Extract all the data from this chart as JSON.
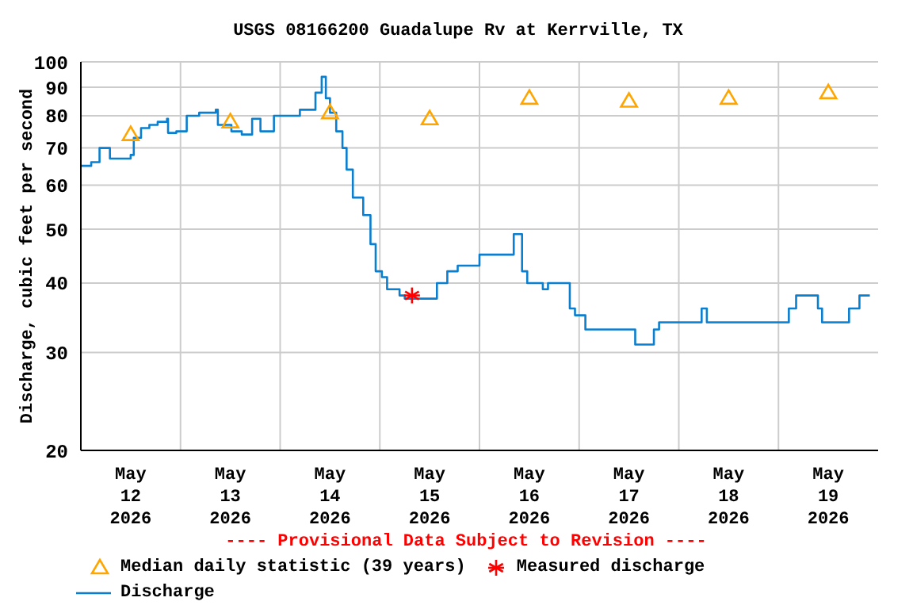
{
  "chart_data": {
    "type": "step",
    "title": "USGS 08166200 Guadalupe Rv at Kerrville, TX",
    "ylabel": "Discharge, cubic feet per second",
    "annotations": [
      "---- Provisional Data Subject to Revision ----"
    ],
    "xlim": [
      "2026-05-12T00:00",
      "2026-05-20T00:00"
    ],
    "xticks": [
      {
        "value": "2026-05-12T12:00",
        "label": "May\n12\n2026"
      },
      {
        "value": "2026-05-13T00:00",
        "label": null
      },
      {
        "value": "2026-05-13T12:00",
        "label": "May\n13\n2026"
      },
      {
        "value": "2026-05-14T00:00",
        "label": null
      },
      {
        "value": "2026-05-14T12:00",
        "label": "May\n14\n2026"
      },
      {
        "value": "2026-05-15T00:00",
        "label": null
      },
      {
        "value": "2026-05-15T12:00",
        "label": "May\n15\n2026"
      },
      {
        "value": "2026-05-16T00:00",
        "label": null
      },
      {
        "value": "2026-05-16T12:00",
        "label": "May\n16\n2026"
      },
      {
        "value": "2026-05-17T00:00",
        "label": null
      },
      {
        "value": "2026-05-17T12:00",
        "label": "May\n17\n2026"
      },
      {
        "value": "2026-05-18T00:00",
        "label": null
      },
      {
        "value": "2026-05-18T12:00",
        "label": "May\n18\n2026"
      },
      {
        "value": "2026-05-19T00:00",
        "label": null
      },
      {
        "value": "2026-05-19T12:00",
        "label": "May\n19\n2026"
      }
    ],
    "ylim": [
      20,
      100
    ],
    "yticks": [
      20,
      30,
      40,
      50,
      60,
      70,
      80,
      90,
      100
    ],
    "log": "y",
    "grid": true,
    "legend": "bottom",
    "series": [
      {
        "name": "Median daily statistic (39 years)",
        "type": "scatter",
        "marker": "triangle",
        "color": "#ffa500",
        "x": [
          "2026-05-12T12:00",
          "2026-05-13T12:00",
          "2026-05-14T12:00",
          "2026-05-15T12:00",
          "2026-05-16T12:00",
          "2026-05-17T12:00",
          "2026-05-18T12:00",
          "2026-05-19T12:00"
        ],
        "values": [
          74,
          78,
          81,
          79,
          86,
          85,
          86,
          88
        ]
      },
      {
        "name": "Measured discharge",
        "type": "scatter",
        "marker": "cross",
        "color": "#ff0000",
        "x": [
          "2026-05-15T07:45"
        ],
        "values": [
          38
        ]
      },
      {
        "name": "Discharge",
        "marker": "none",
        "color": "#0a7fcf",
        "x": [
          "2026-05-12T00:00",
          "2026-05-12T02:30",
          "2026-05-12T04:30",
          "2026-05-12T07:00",
          "2026-05-12T09:30",
          "2026-05-12T12:00",
          "2026-05-12T12:45",
          "2026-05-12T14:30",
          "2026-05-12T16:30",
          "2026-05-12T18:30",
          "2026-05-12T20:45",
          "2026-05-12T21:00",
          "2026-05-12T23:00",
          "2026-05-13T01:30",
          "2026-05-13T04:30",
          "2026-05-13T08:30",
          "2026-05-13T09:00",
          "2026-05-13T12:15",
          "2026-05-13T14:45",
          "2026-05-13T17:15",
          "2026-05-13T19:15",
          "2026-05-13T22:30",
          "2026-05-14T02:45",
          "2026-05-14T04:45",
          "2026-05-14T07:15",
          "2026-05-14T08:30",
          "2026-05-14T10:00",
          "2026-05-14T11:00",
          "2026-05-14T12:00",
          "2026-05-14T13:30",
          "2026-05-14T15:00",
          "2026-05-14T16:00",
          "2026-05-14T17:30",
          "2026-05-14T18:45",
          "2026-05-14T20:00",
          "2026-05-14T21:45",
          "2026-05-14T23:00",
          "2026-05-15T00:30",
          "2026-05-15T01:45",
          "2026-05-15T04:45",
          "2026-05-15T06:00",
          "2026-05-15T10:00",
          "2026-05-15T13:45",
          "2026-05-15T15:00",
          "2026-05-15T16:15",
          "2026-05-15T18:45",
          "2026-05-15T22:30",
          "2026-05-16T00:00",
          "2026-05-16T01:30",
          "2026-05-16T07:45",
          "2026-05-16T08:15",
          "2026-05-16T10:15",
          "2026-05-16T11:30",
          "2026-05-16T15:15",
          "2026-05-16T16:30",
          "2026-05-16T21:45",
          "2026-05-16T23:00",
          "2026-05-17T01:30",
          "2026-05-17T12:45",
          "2026-05-17T13:30",
          "2026-05-17T16:45",
          "2026-05-17T18:00",
          "2026-05-17T19:15",
          "2026-05-18T04:15",
          "2026-05-18T05:30",
          "2026-05-18T06:45",
          "2026-05-18T09:15",
          "2026-05-18T19:30",
          "2026-05-19T01:45",
          "2026-05-19T02:30",
          "2026-05-19T04:15",
          "2026-05-19T08:00",
          "2026-05-19T09:30",
          "2026-05-19T10:30",
          "2026-05-19T15:45",
          "2026-05-19T17:00",
          "2026-05-19T19:30",
          "2026-05-19T22:00"
        ],
        "values": [
          65,
          66,
          70,
          67,
          67,
          68,
          73,
          76,
          77,
          78,
          79,
          74.5,
          75,
          80,
          81,
          82,
          77,
          75,
          74,
          79,
          75,
          80,
          80,
          82,
          82,
          88,
          94,
          86,
          81,
          75,
          70,
          64,
          57,
          57,
          53,
          47,
          42,
          41,
          39,
          38,
          37.5,
          37.5,
          40,
          40,
          42,
          43,
          43,
          45,
          45,
          45,
          49,
          42,
          40,
          39,
          40,
          36,
          35,
          33,
          33,
          31,
          31,
          33,
          34,
          34,
          36,
          34,
          34,
          34,
          34,
          36,
          38,
          38,
          36,
          34,
          34,
          36,
          38,
          38
        ]
      }
    ]
  }
}
